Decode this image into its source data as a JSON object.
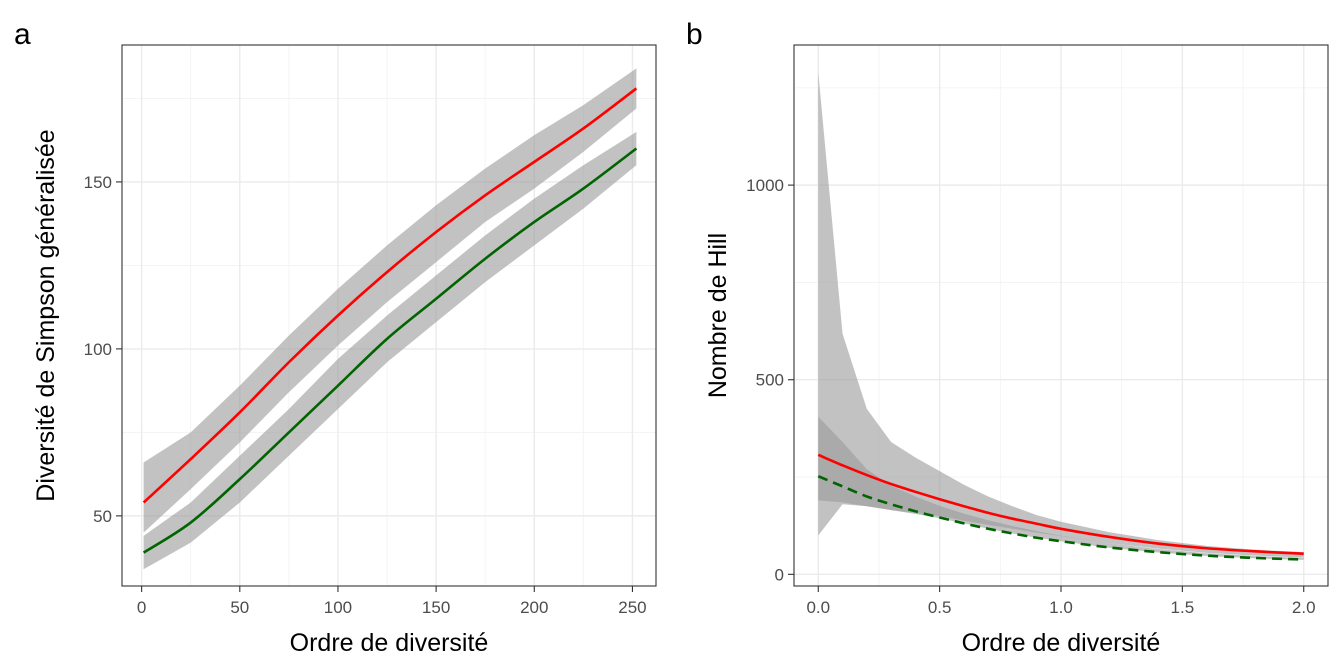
{
  "panels": [
    {
      "label": "a",
      "xlabel": "Ordre de diversité",
      "ylabel": "Diversité de Simpson généralisée",
      "xticks": [
        0,
        50,
        100,
        150,
        200,
        250
      ],
      "xtick_labels": [
        "0",
        "50",
        "100",
        "150",
        "200",
        "250"
      ],
      "yticks": [
        50,
        100,
        150
      ],
      "ytick_labels": [
        "50",
        "100",
        "150"
      ]
    },
    {
      "label": "b",
      "xlabel": "Ordre de diversité",
      "ylabel": "Nombre de Hill",
      "xticks": [
        0,
        0.5,
        1,
        1.5,
        2
      ],
      "xtick_labels": [
        "0.0",
        "0.5",
        "1.0",
        "1.5",
        "2.0"
      ],
      "yticks": [
        0,
        500,
        1000
      ],
      "ytick_labels": [
        "0",
        "500",
        "1000"
      ]
    }
  ],
  "colors": {
    "red": "#ff0000",
    "green": "#006400",
    "band": "#999999"
  },
  "chart_data": [
    {
      "type": "line",
      "xlabel": "Ordre de diversité",
      "ylabel": "Diversité de Simpson généralisée",
      "xlim": [
        -10,
        262
      ],
      "ylim": [
        29,
        191
      ],
      "grid": true,
      "series": [
        {
          "color": "red",
          "linetype": "solid",
          "x": [
            1,
            25,
            50,
            75,
            100,
            125,
            150,
            175,
            200,
            225,
            252
          ],
          "y": [
            54,
            67,
            81,
            96,
            110,
            123,
            135,
            146,
            156,
            166,
            178
          ],
          "band_low": [
            45,
            58,
            72,
            87,
            101,
            114,
            126,
            138,
            148,
            159,
            172
          ],
          "band_high": [
            66,
            75,
            89,
            104,
            118,
            131,
            143,
            154,
            164,
            173,
            184
          ]
        },
        {
          "color": "green",
          "linetype": "solid",
          "x": [
            1,
            25,
            50,
            75,
            100,
            125,
            150,
            175,
            200,
            225,
            252
          ],
          "y": [
            39,
            48,
            61,
            75,
            89,
            103,
            115,
            127,
            138,
            148,
            160
          ],
          "band_low": [
            34,
            42,
            54,
            68,
            82,
            96,
            108,
            120,
            131,
            142,
            155
          ],
          "band_high": [
            44,
            54,
            68,
            82,
            97,
            110,
            122,
            134,
            145,
            155,
            165
          ]
        }
      ]
    },
    {
      "type": "line",
      "xlabel": "Ordre de diversité",
      "ylabel": "Nombre de Hill",
      "xlim": [
        -0.1,
        2.1
      ],
      "ylim": [
        -30,
        1360
      ],
      "grid": true,
      "series": [
        {
          "color": "red",
          "linetype": "solid",
          "x": [
            0,
            0.1,
            0.2,
            0.3,
            0.4,
            0.5,
            0.6,
            0.7,
            0.8,
            0.9,
            1.0,
            1.2,
            1.4,
            1.6,
            1.8,
            2.0
          ],
          "y": [
            307,
            280,
            255,
            232,
            212,
            193,
            175,
            158,
            143,
            130,
            117,
            96,
            79,
            67,
            59,
            53
          ],
          "band_low": [
            100,
            180,
            175,
            165,
            158,
            150,
            138,
            127,
            117,
            107,
            98,
            80,
            66,
            55,
            48,
            43
          ],
          "band_high": [
            1290,
            618,
            425,
            340,
            300,
            265,
            230,
            200,
            175,
            152,
            135,
            108,
            88,
            73,
            63,
            57
          ]
        },
        {
          "color": "green",
          "linetype": "dashed",
          "x": [
            0,
            0.1,
            0.2,
            0.3,
            0.4,
            0.5,
            0.6,
            0.7,
            0.8,
            0.9,
            1.0,
            1.2,
            1.4,
            1.6,
            1.8,
            2.0
          ],
          "y": [
            252,
            226,
            200,
            180,
            162,
            146,
            131,
            117,
            105,
            94,
            85,
            69,
            57,
            48,
            42,
            38
          ],
          "band_low": [
            190,
            185,
            175,
            165,
            155,
            144,
            131,
            117,
            105,
            94,
            85,
            68,
            56,
            47,
            41,
            37
          ],
          "band_high": [
            405,
            340,
            270,
            228,
            200,
            176,
            156,
            139,
            124,
            111,
            99,
            80,
            65,
            54,
            47,
            42
          ]
        }
      ]
    }
  ]
}
